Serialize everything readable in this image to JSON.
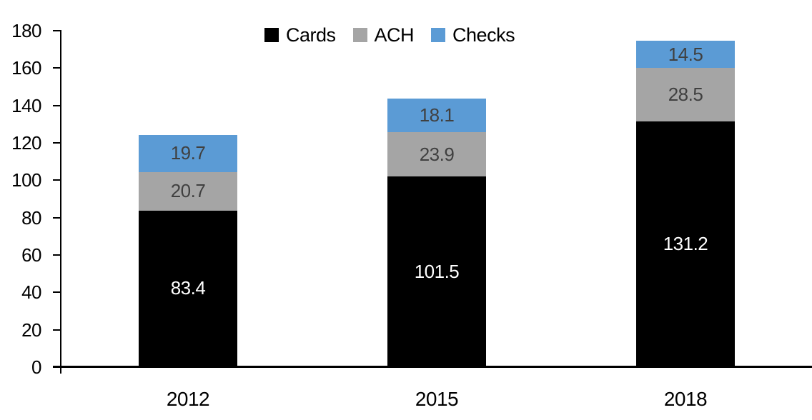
{
  "chart_data": {
    "type": "bar",
    "stacked": true,
    "title": "",
    "categories": [
      "2012",
      "2015",
      "2018"
    ],
    "series": [
      {
        "name": "Cards",
        "color": "#000000",
        "label_color": "#ffffff",
        "values": [
          83.4,
          101.5,
          131.2
        ]
      },
      {
        "name": "ACH",
        "color": "#a5a5a5",
        "label_color": "#404040",
        "values": [
          20.7,
          23.9,
          28.5
        ]
      },
      {
        "name": "Checks",
        "color": "#5b9bd5",
        "label_color": "#404040",
        "values": [
          19.7,
          18.1,
          14.5
        ]
      }
    ],
    "totals": [
      123.8,
      143.5,
      174.2
    ],
    "ylim": [
      0,
      180
    ],
    "yticks": [
      0,
      20,
      40,
      60,
      80,
      100,
      120,
      140,
      160,
      180
    ],
    "legend": {
      "position": "top",
      "entries": [
        "Cards",
        "ACH",
        "Checks"
      ]
    },
    "grid": false,
    "axis_color": "#000000",
    "background": "#ffffff"
  }
}
